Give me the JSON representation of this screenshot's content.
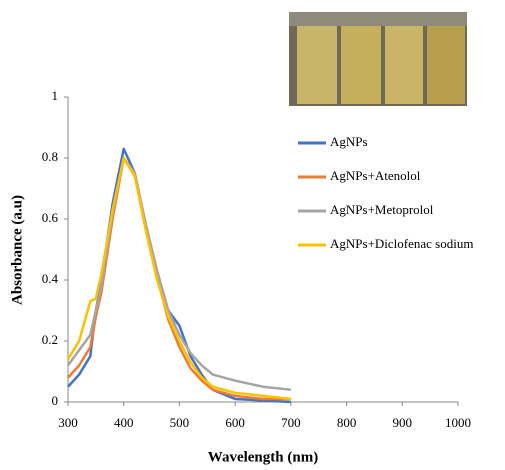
{
  "chart_data": {
    "type": "line",
    "x_label": "Wavelength  (nm)",
    "y_label": "Absorbance  (a.u)",
    "x": [
      300,
      320,
      340,
      350,
      360,
      380,
      400,
      420,
      440,
      460,
      480,
      500,
      520,
      540,
      560,
      600,
      650,
      700
    ],
    "series": [
      {
        "name": "AgNPs",
        "color": "#4472c4",
        "values": [
          0.05,
          0.09,
          0.15,
          0.3,
          0.4,
          0.65,
          0.83,
          0.75,
          0.57,
          0.42,
          0.3,
          0.25,
          0.15,
          0.09,
          0.04,
          0.01,
          0.005,
          0
        ]
      },
      {
        "name": "AgNPs+Atenolol",
        "color": "#ed7d31",
        "values": [
          0.08,
          0.12,
          0.18,
          0.28,
          0.36,
          0.6,
          0.8,
          0.74,
          0.57,
          0.41,
          0.27,
          0.18,
          0.11,
          0.07,
          0.04,
          0.02,
          0.01,
          0.01
        ]
      },
      {
        "name": "AgNPs+Metoprolol",
        "color": "#a5a5a5",
        "values": [
          0.12,
          0.17,
          0.22,
          0.3,
          0.38,
          0.62,
          0.8,
          0.75,
          0.58,
          0.43,
          0.3,
          0.22,
          0.16,
          0.12,
          0.09,
          0.07,
          0.05,
          0.04
        ]
      },
      {
        "name": "AgNPs+Diclofenac sodium",
        "color": "#ffc000",
        "values": [
          0.14,
          0.2,
          0.33,
          0.34,
          0.42,
          0.63,
          0.8,
          0.74,
          0.56,
          0.4,
          0.28,
          0.2,
          0.13,
          0.08,
          0.05,
          0.03,
          0.02,
          0.01
        ]
      }
    ],
    "xlim": [
      300,
      1000
    ],
    "xticks": [
      300,
      400,
      500,
      600,
      700,
      800,
      900,
      1000
    ],
    "ylim": [
      0,
      1
    ],
    "yticks": [
      0,
      0.2,
      0.4,
      0.6,
      0.8,
      1
    ],
    "grid": false,
    "legend": "right"
  }
}
